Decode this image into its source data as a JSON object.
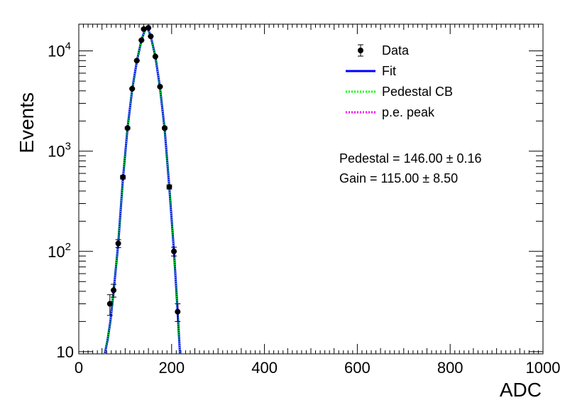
{
  "chart_data": {
    "type": "scatter",
    "xlabel": "ADC",
    "ylabel": "Events",
    "xlim": [
      0,
      1000
    ],
    "ylim": [
      9.5,
      18500
    ],
    "yscale": "log",
    "x_tick_labels": [
      "0",
      "200",
      "400",
      "600",
      "800",
      "1000"
    ],
    "y_tick_labels": [
      {
        "base": "10",
        "exp": ""
      },
      {
        "base": "10",
        "exp": "2"
      },
      {
        "base": "10",
        "exp": "3"
      },
      {
        "base": "10",
        "exp": "4"
      }
    ],
    "grid": false,
    "legend_position": "top-right",
    "legend": [
      {
        "label": "Data",
        "kind": "marker"
      },
      {
        "label": "Fit",
        "kind": "line",
        "color": "#0000ff"
      },
      {
        "label": "Pedestal CB",
        "kind": "dotted",
        "color": "#00ff00"
      },
      {
        "label": "p.e. peak",
        "kind": "dotted",
        "color": "#ff00ff"
      }
    ],
    "annotations": [
      {
        "text": "Pedestal = 146.00 ± 0.16"
      },
      {
        "text": "Gain = 115.00 ± 8.50"
      }
    ],
    "series": [
      {
        "name": "Data",
        "x": [
          67,
          75,
          85,
          95,
          105,
          115,
          125,
          135,
          140,
          150,
          155,
          165,
          175,
          185,
          195,
          205,
          213
        ],
        "y": [
          30,
          41,
          120,
          550,
          1700,
          4200,
          8000,
          12800,
          16500,
          17000,
          14000,
          8800,
          4400,
          1700,
          440,
          100,
          25
        ],
        "yerr": [
          7,
          6,
          11,
          23,
          41,
          65,
          89,
          113,
          128,
          130,
          118,
          94,
          66,
          41,
          21,
          10,
          5
        ]
      },
      {
        "name": "Fit",
        "color": "#0000ff",
        "x": [
          56,
          62,
          68,
          75,
          85,
          95,
          105,
          115,
          125,
          135,
          142,
          146,
          150,
          155,
          165,
          175,
          185,
          195,
          205,
          212,
          218
        ],
        "y": [
          9.5,
          13,
          20,
          40,
          120,
          520,
          1700,
          4100,
          7900,
          12800,
          16000,
          17200,
          16200,
          14000,
          8800,
          4300,
          1650,
          440,
          100,
          30,
          9.5
        ]
      },
      {
        "name": "Pedestal CB",
        "color": "#00ff00",
        "x": [
          56,
          62,
          68,
          75,
          85,
          95,
          105,
          115,
          125,
          135,
          142,
          146,
          150,
          155,
          165,
          175,
          185,
          195,
          205,
          212,
          218
        ],
        "y": [
          9.5,
          13,
          20,
          40,
          120,
          520,
          1700,
          4100,
          7900,
          12800,
          16000,
          17200,
          16200,
          14000,
          8800,
          4300,
          1650,
          440,
          100,
          30,
          9.5
        ]
      }
    ]
  }
}
